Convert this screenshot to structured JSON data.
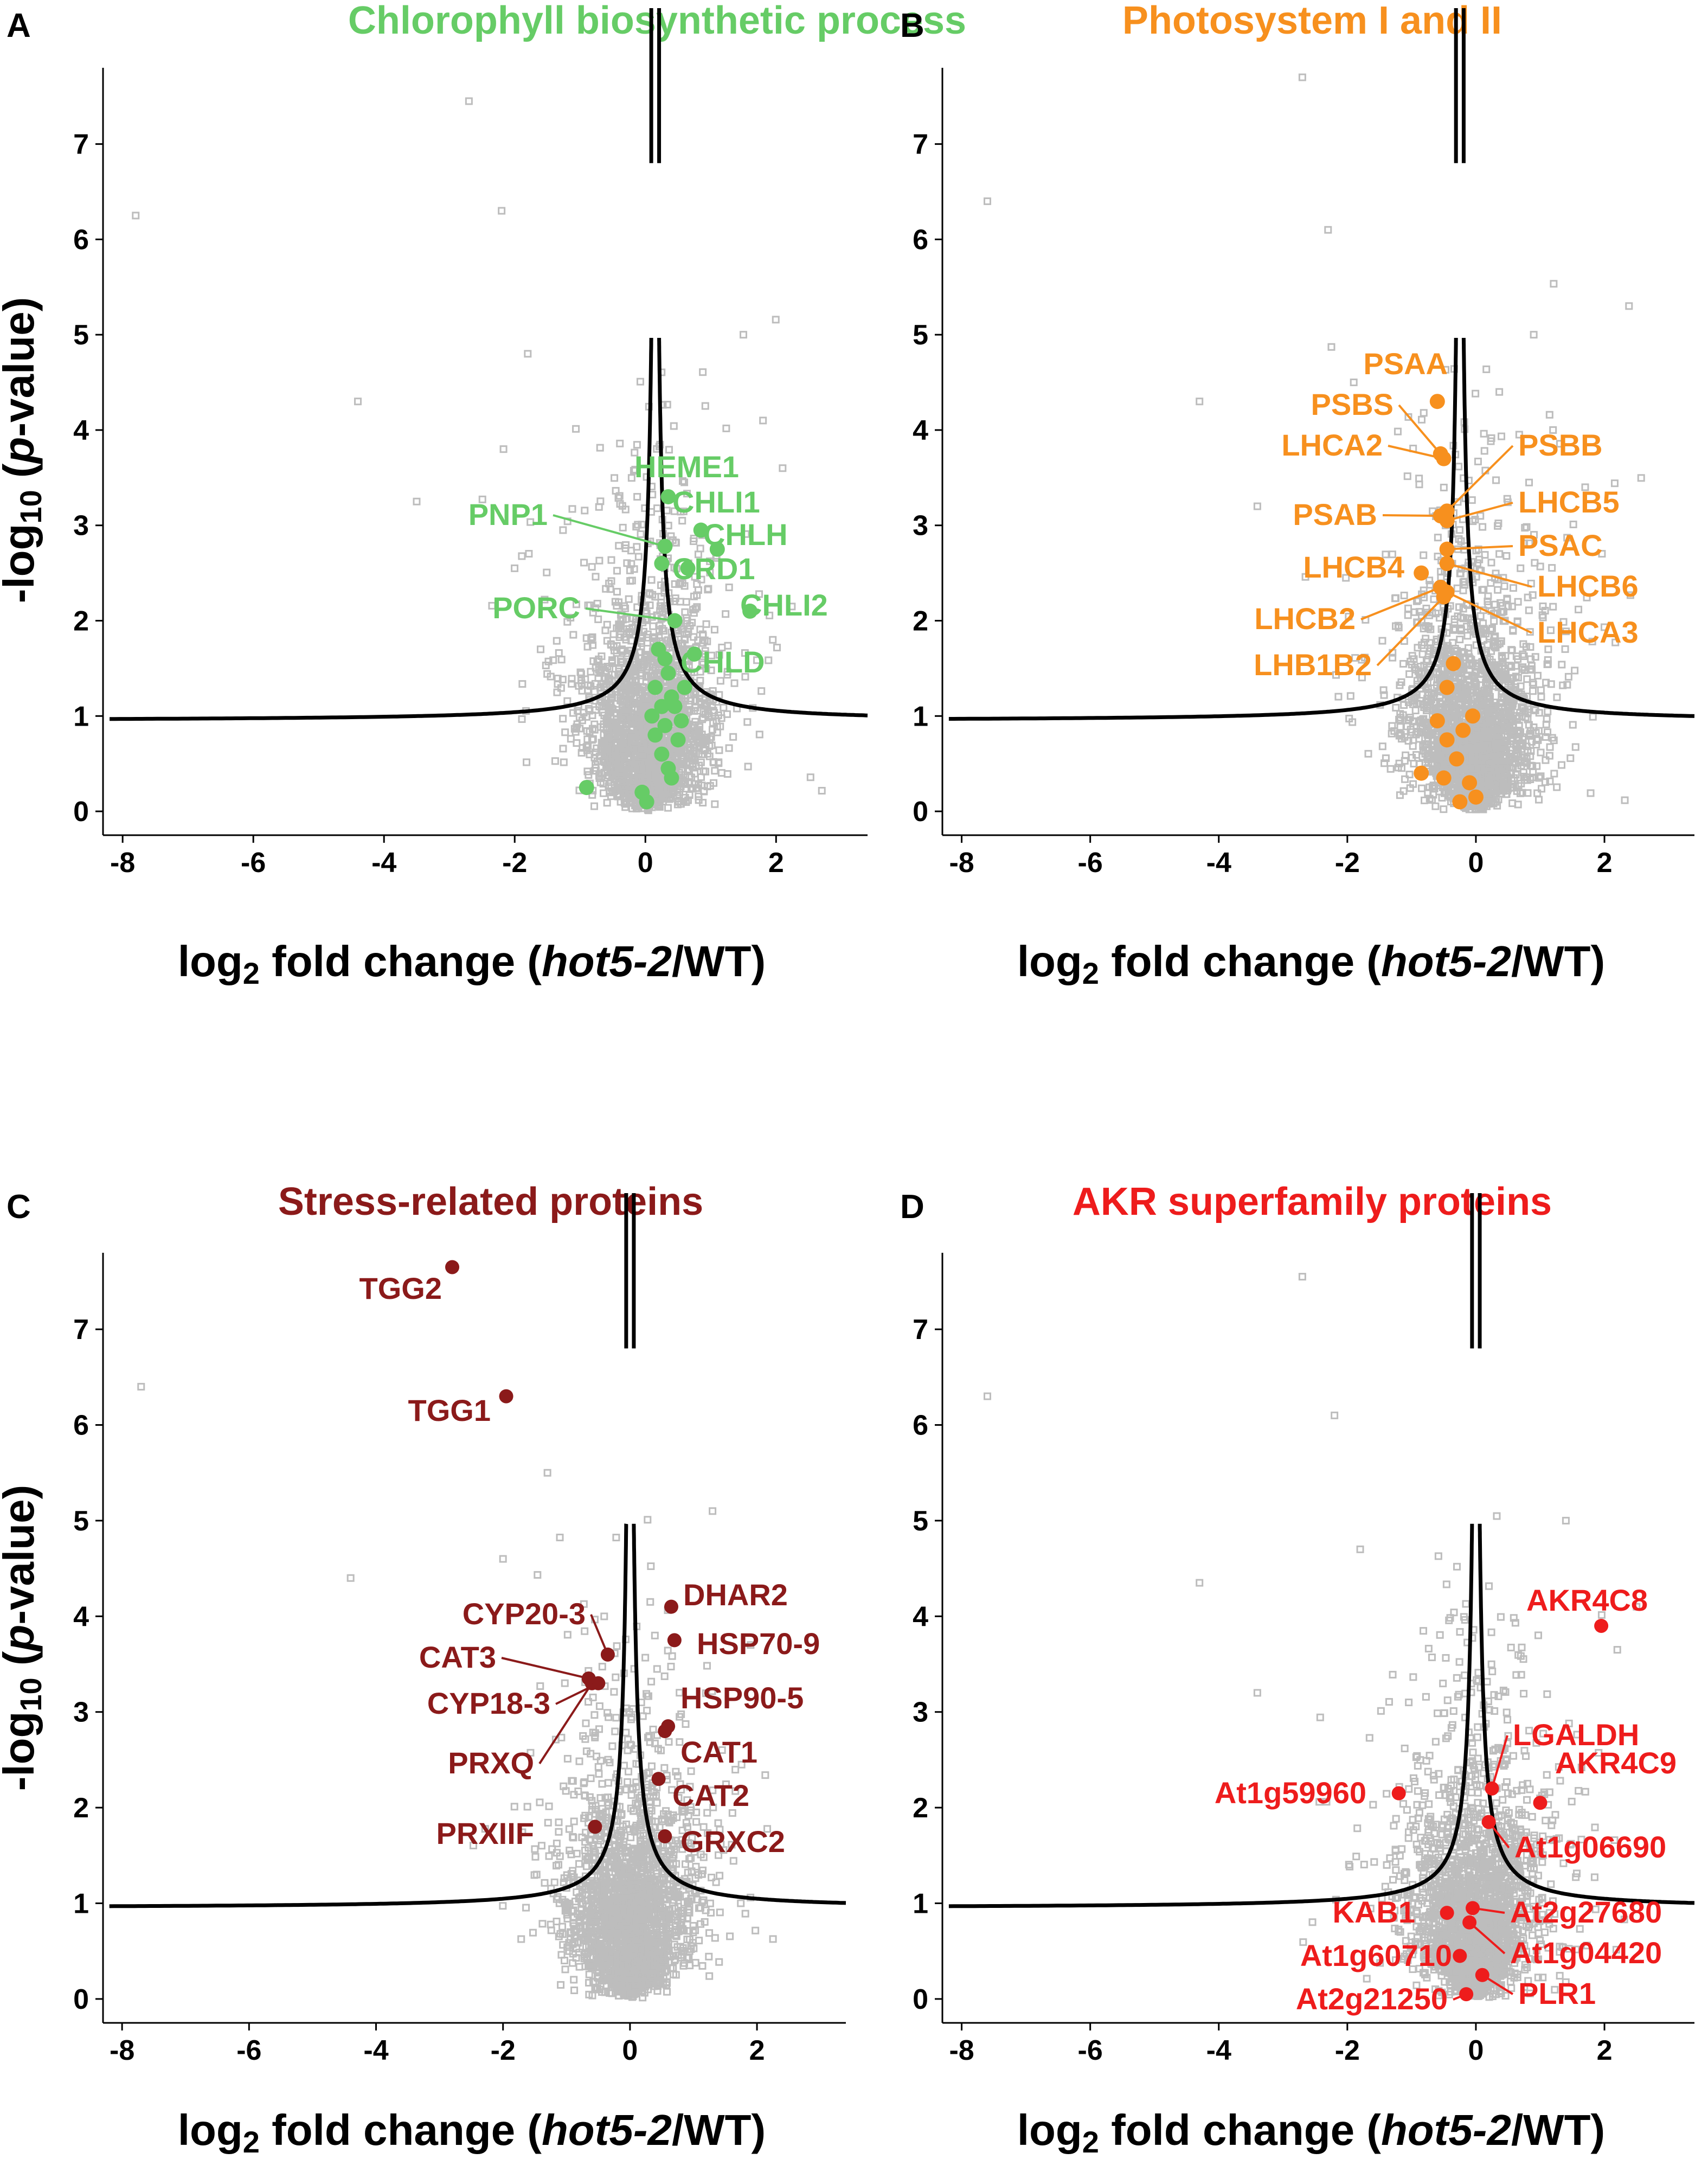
{
  "figure": {
    "xlabel": {
      "prefix": "log",
      "sub": "2",
      "mid": " fold change (",
      "italic": "hot5-2",
      "suffix": "/WT)"
    },
    "ylabel": {
      "prefix": "-log",
      "sub": "10",
      "mid": " (",
      "italic": "p",
      "suffix": "-value)"
    },
    "background_color": "#bdbdbd",
    "curve_color": "#000000"
  },
  "chart_data": [
    {
      "type": "scatter",
      "panel": "A",
      "title": "Chlorophyll biosynthetic process",
      "color": "#66cc66",
      "xlim": [
        -8.3,
        3.4
      ],
      "ylim": [
        -0.25,
        7.8
      ],
      "xticks": [
        -8,
        -6,
        -4,
        -2,
        0,
        2
      ],
      "yticks": [
        0,
        1,
        2,
        3,
        4,
        5,
        6,
        7
      ],
      "curve_offset": 0.15,
      "background_outliers": [
        {
          "x": -7.8,
          "y": 6.25
        },
        {
          "x": -2.7,
          "y": 7.45
        },
        {
          "x": -4.4,
          "y": 4.3
        },
        {
          "x": -3.5,
          "y": 3.25
        },
        {
          "x": -2.2,
          "y": 6.3
        },
        {
          "x": 2.1,
          "y": 3.6
        },
        {
          "x": 1.8,
          "y": 4.1
        },
        {
          "x": -1.8,
          "y": 4.8
        },
        {
          "x": 1.5,
          "y": 5.0
        }
      ],
      "highlighted": [
        {
          "label": "HEME1",
          "x": 0.35,
          "y": 3.3
        },
        {
          "label": "CHLI1",
          "x": 0.85,
          "y": 2.95
        },
        {
          "label": "CHLH",
          "x": 1.1,
          "y": 2.75
        },
        {
          "label": "PNP1",
          "x": 0.3,
          "y": 2.78
        },
        {
          "label": "CRD1",
          "x": 0.65,
          "y": 2.55
        },
        {
          "label": "CHLI2",
          "x": 1.6,
          "y": 2.1
        },
        {
          "label": "PORC",
          "x": 0.45,
          "y": 2.0
        },
        {
          "label": "CHLD",
          "x": 0.75,
          "y": 1.65
        }
      ],
      "unlabeled": [
        {
          "x": 0.25,
          "y": 2.6
        },
        {
          "x": 0.2,
          "y": 1.7
        },
        {
          "x": 0.3,
          "y": 1.6
        },
        {
          "x": 0.35,
          "y": 1.45
        },
        {
          "x": 0.15,
          "y": 1.3
        },
        {
          "x": 0.4,
          "y": 1.2
        },
        {
          "x": 0.25,
          "y": 1.1
        },
        {
          "x": 0.6,
          "y": 1.3
        },
        {
          "x": 0.1,
          "y": 1.0
        },
        {
          "x": 0.3,
          "y": 0.9
        },
        {
          "x": 0.55,
          "y": 0.95
        },
        {
          "x": 0.15,
          "y": 0.8
        },
        {
          "x": 0.25,
          "y": 0.6
        },
        {
          "x": 0.35,
          "y": 0.45
        },
        {
          "x": -0.05,
          "y": 0.2
        },
        {
          "x": 0.02,
          "y": 0.1
        },
        {
          "x": -0.9,
          "y": 0.25
        },
        {
          "x": 0.4,
          "y": 0.35
        },
        {
          "x": 0.5,
          "y": 0.75
        },
        {
          "x": 0.45,
          "y": 1.1
        }
      ]
    },
    {
      "type": "scatter",
      "panel": "B",
      "title": "Photosystem I and II",
      "color": "#f7901e",
      "xlim": [
        -8.3,
        3.4
      ],
      "ylim": [
        -0.25,
        7.8
      ],
      "xticks": [
        -8,
        -6,
        -4,
        -2,
        0,
        2
      ],
      "yticks": [
        0,
        1,
        2,
        3,
        4,
        5,
        6,
        7
      ],
      "curve_offset": -0.25,
      "background_outliers": [
        {
          "x": -7.6,
          "y": 6.4
        },
        {
          "x": -2.7,
          "y": 7.7
        },
        {
          "x": -4.3,
          "y": 4.3
        },
        {
          "x": -3.4,
          "y": 3.2
        },
        {
          "x": -2.3,
          "y": 6.1
        },
        {
          "x": 1.7,
          "y": 3.4
        },
        {
          "x": 1.2,
          "y": 4.0
        },
        {
          "x": -1.9,
          "y": 4.5
        },
        {
          "x": 0.9,
          "y": 5.0
        }
      ],
      "highlighted": [
        {
          "label": "PSAA",
          "x": -0.6,
          "y": 4.3
        },
        {
          "label": "PSBS",
          "x": -0.55,
          "y": 3.75
        },
        {
          "label": "LHCA2",
          "x": -0.5,
          "y": 3.7
        },
        {
          "label": "PSBB",
          "x": -0.45,
          "y": 3.15
        },
        {
          "label": "PSAB",
          "x": -0.55,
          "y": 3.1
        },
        {
          "label": "LHCB5",
          "x": -0.45,
          "y": 3.05
        },
        {
          "label": "PSAC",
          "x": -0.45,
          "y": 2.75
        },
        {
          "label": "LHCB4",
          "x": -0.85,
          "y": 2.5
        },
        {
          "label": "LHCB6",
          "x": -0.45,
          "y": 2.6
        },
        {
          "label": "LHCB2",
          "x": -0.55,
          "y": 2.35
        },
        {
          "label": "LHCA3",
          "x": -0.45,
          "y": 2.3
        },
        {
          "label": "LHB1B2",
          "x": -0.5,
          "y": 2.25
        }
      ],
      "unlabeled": [
        {
          "x": -0.35,
          "y": 1.55
        },
        {
          "x": -0.45,
          "y": 1.3
        },
        {
          "x": -0.05,
          "y": 1.0
        },
        {
          "x": -0.2,
          "y": 0.85
        },
        {
          "x": -0.45,
          "y": 0.75
        },
        {
          "x": -0.3,
          "y": 0.55
        },
        {
          "x": -0.85,
          "y": 0.4
        },
        {
          "x": -0.5,
          "y": 0.35
        },
        {
          "x": -0.6,
          "y": 0.95
        },
        {
          "x": -0.1,
          "y": 0.3
        },
        {
          "x": 0.0,
          "y": 0.15
        },
        {
          "x": -0.25,
          "y": 0.1
        }
      ]
    },
    {
      "type": "scatter",
      "panel": "C",
      "title": "Stress-related proteins",
      "color": "#8b1a1a",
      "xlim": [
        -8.3,
        3.4
      ],
      "ylim": [
        -0.25,
        7.8
      ],
      "xticks": [
        -8,
        -6,
        -4,
        -2,
        0,
        2
      ],
      "yticks": [
        0,
        1,
        2,
        3,
        4,
        5,
        6,
        7
      ],
      "curve_offset": 0.0,
      "background_outliers": [
        {
          "x": -7.7,
          "y": 6.4
        },
        {
          "x": -4.4,
          "y": 4.4
        },
        {
          "x": -2.0,
          "y": 4.6
        },
        {
          "x": 1.3,
          "y": 5.1
        },
        {
          "x": 1.9,
          "y": 3.7
        },
        {
          "x": -1.3,
          "y": 5.5
        }
      ],
      "highlighted": [
        {
          "label": "TGG2",
          "x": -2.8,
          "y": 7.65
        },
        {
          "label": "TGG1",
          "x": -1.95,
          "y": 6.3
        },
        {
          "label": "DHAR2",
          "x": 0.65,
          "y": 4.1
        },
        {
          "label": "HSP70-9",
          "x": 0.7,
          "y": 3.75
        },
        {
          "label": "CYP20-3",
          "x": -0.35,
          "y": 3.6
        },
        {
          "label": "CAT3",
          "x": -0.65,
          "y": 3.35
        },
        {
          "label": "CYP18-3",
          "x": -0.5,
          "y": 3.3
        },
        {
          "label": "HSP90-5",
          "x": 0.6,
          "y": 2.85
        },
        {
          "label": "PRXQ",
          "x": -0.6,
          "y": 3.3
        },
        {
          "label": "CAT1",
          "x": 0.55,
          "y": 2.8
        },
        {
          "label": "CAT2",
          "x": 0.45,
          "y": 2.3
        },
        {
          "label": "PRXIIF",
          "x": -0.55,
          "y": 1.8
        },
        {
          "label": "GRXC2",
          "x": 0.55,
          "y": 1.7
        }
      ],
      "unlabeled": []
    },
    {
      "type": "scatter",
      "panel": "D",
      "title": "AKR superfamily proteins",
      "color": "#ee1c1c",
      "xlim": [
        -8.3,
        3.4
      ],
      "ylim": [
        -0.25,
        7.8
      ],
      "xticks": [
        -8,
        -6,
        -4,
        -2,
        0,
        2
      ],
      "yticks": [
        0,
        1,
        2,
        3,
        4,
        5,
        6,
        7
      ],
      "curve_offset": 0.0,
      "background_outliers": [
        {
          "x": -7.6,
          "y": 6.3
        },
        {
          "x": -2.7,
          "y": 7.55
        },
        {
          "x": -4.3,
          "y": 4.35
        },
        {
          "x": -3.4,
          "y": 3.2
        },
        {
          "x": -2.2,
          "y": 6.1
        },
        {
          "x": 2.2,
          "y": 3.65
        },
        {
          "x": 2.5,
          "y": 4.1
        },
        {
          "x": -1.8,
          "y": 4.7
        },
        {
          "x": 1.4,
          "y": 5.0
        }
      ],
      "highlighted": [
        {
          "label": "AKR4C8",
          "x": 1.95,
          "y": 3.9
        },
        {
          "label": "LGALDH",
          "x": 0.25,
          "y": 2.2
        },
        {
          "label": "At1g59960",
          "x": -1.2,
          "y": 2.15
        },
        {
          "label": "AKR4C9",
          "x": 1.0,
          "y": 2.05
        },
        {
          "label": "At1g06690",
          "x": 0.2,
          "y": 1.85
        },
        {
          "label": "KAB1",
          "x": -0.45,
          "y": 0.9
        },
        {
          "label": "At2g27680",
          "x": -0.05,
          "y": 0.95
        },
        {
          "label": "At1g60710",
          "x": -0.25,
          "y": 0.45
        },
        {
          "label": "At1g04420",
          "x": -0.1,
          "y": 0.8
        },
        {
          "label": "At2g21250",
          "x": -0.15,
          "y": 0.05
        },
        {
          "label": "PLR1",
          "x": 0.1,
          "y": 0.25
        }
      ],
      "unlabeled": []
    }
  ]
}
